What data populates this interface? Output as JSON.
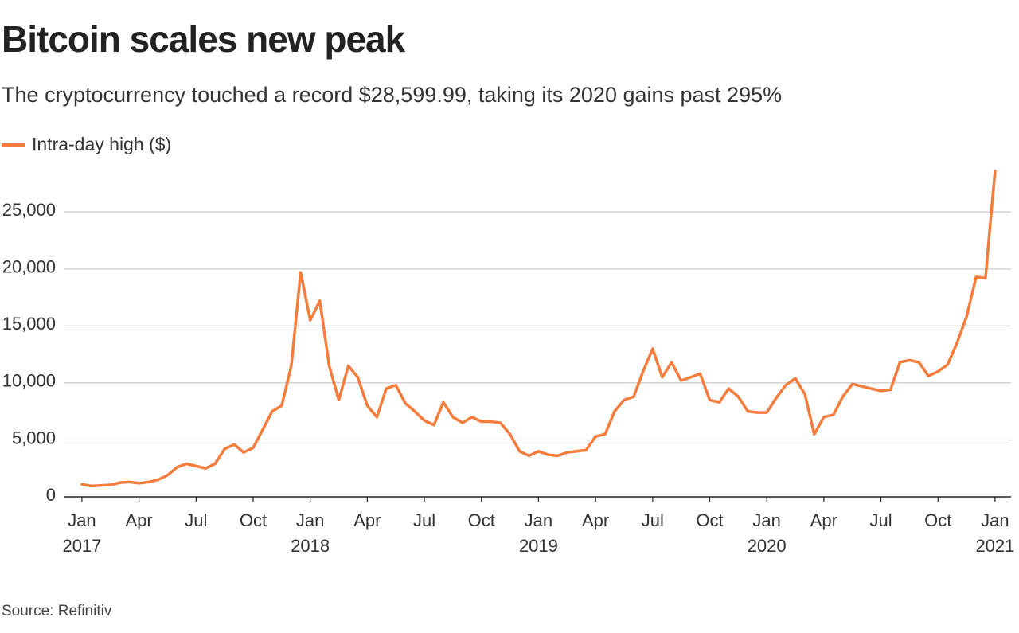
{
  "chart_data": {
    "type": "line",
    "title": "Bitcoin scales new peak",
    "subtitle": "The cryptocurrency touched a record $28,599.99, taking its 2020 gains past 295%",
    "source": "Source: Refinitiv",
    "x": [
      2017,
      2017.042,
      2017.083,
      2017.125,
      2017.167,
      2017.208,
      2017.25,
      2017.292,
      2017.333,
      2017.375,
      2017.417,
      2017.458,
      2017.5,
      2017.542,
      2017.583,
      2017.625,
      2017.667,
      2017.708,
      2017.75,
      2017.792,
      2017.833,
      2017.875,
      2017.917,
      2017.958,
      2018,
      2018.042,
      2018.083,
      2018.125,
      2018.167,
      2018.208,
      2018.25,
      2018.292,
      2018.333,
      2018.375,
      2018.417,
      2018.458,
      2018.5,
      2018.542,
      2018.583,
      2018.625,
      2018.667,
      2018.708,
      2018.75,
      2018.792,
      2018.833,
      2018.875,
      2018.917,
      2018.958,
      2019,
      2019.042,
      2019.083,
      2019.125,
      2019.167,
      2019.208,
      2019.25,
      2019.292,
      2019.333,
      2019.375,
      2019.417,
      2019.458,
      2019.5,
      2019.542,
      2019.583,
      2019.625,
      2019.667,
      2019.708,
      2019.75,
      2019.792,
      2019.833,
      2019.875,
      2019.917,
      2019.958,
      2020,
      2020.042,
      2020.083,
      2020.125,
      2020.167,
      2020.208,
      2020.25,
      2020.292,
      2020.333,
      2020.375,
      2020.417,
      2020.458,
      2020.5,
      2020.542,
      2020.583,
      2020.625,
      2020.667,
      2020.708,
      2020.75,
      2020.792,
      2020.833,
      2020.875,
      2020.917,
      2020.958,
      2020.979,
      2021
    ],
    "series": [
      {
        "name": "Intra-day high ($)",
        "color": "#f47c3c",
        "values": [
          1100,
          950,
          1000,
          1050,
          1250,
          1300,
          1200,
          1300,
          1500,
          1900,
          2600,
          2900,
          2700,
          2500,
          2900,
          4200,
          4600,
          3900,
          4300,
          5900,
          7500,
          8000,
          11500,
          19700,
          15500,
          17200,
          11500,
          8500,
          11500,
          10500,
          8000,
          7000,
          9500,
          9800,
          8200,
          7500,
          6700,
          6300,
          8300,
          7000,
          6500,
          7000,
          6600,
          6600,
          6500,
          5500,
          4000,
          3600,
          4000,
          3700,
          3600,
          3900,
          4000,
          4100,
          5300,
          5500,
          7500,
          8500,
          8800,
          11000,
          13000,
          10500,
          11800,
          10200,
          10500,
          10800,
          8500,
          8300,
          9500,
          8800,
          7500,
          7400,
          7400,
          8700,
          9800,
          10400,
          9000,
          5500,
          7000,
          7200,
          8800,
          9900,
          9700,
          9500,
          9300,
          9400,
          11800,
          12000,
          11800,
          10600,
          11000,
          11600,
          13500,
          15800,
          19300,
          19200,
          24000,
          28600
        ]
      }
    ],
    "xlim": [
      2016.92,
      2021.07
    ],
    "xticks": [
      {
        "value": 2017,
        "label": "Jan\n2017"
      },
      {
        "value": 2017.25,
        "label": "Apr"
      },
      {
        "value": 2017.5,
        "label": "Jul"
      },
      {
        "value": 2017.75,
        "label": "Oct"
      },
      {
        "value": 2018,
        "label": "Jan\n2018"
      },
      {
        "value": 2018.25,
        "label": "Apr"
      },
      {
        "value": 2018.5,
        "label": "Jul"
      },
      {
        "value": 2018.75,
        "label": "Oct"
      },
      {
        "value": 2019,
        "label": "Jan\n2019"
      },
      {
        "value": 2019.25,
        "label": "Apr"
      },
      {
        "value": 2019.5,
        "label": "Jul"
      },
      {
        "value": 2019.75,
        "label": "Oct"
      },
      {
        "value": 2020,
        "label": "Jan\n2020"
      },
      {
        "value": 2020.25,
        "label": "Apr"
      },
      {
        "value": 2020.5,
        "label": "Jul"
      },
      {
        "value": 2020.75,
        "label": "Oct"
      },
      {
        "value": 2021,
        "label": "Jan\n2021"
      }
    ],
    "ylim": [
      0,
      29000
    ],
    "yticks": [
      0,
      {
        "value": 5000,
        "label": "5,000"
      },
      {
        "value": 10000,
        "label": "10,000"
      },
      {
        "value": 15000,
        "label": "15,000"
      },
      {
        "value": 20000,
        "label": "20,000"
      },
      {
        "value": 25000,
        "label": "25,000"
      }
    ],
    "grid": true
  }
}
